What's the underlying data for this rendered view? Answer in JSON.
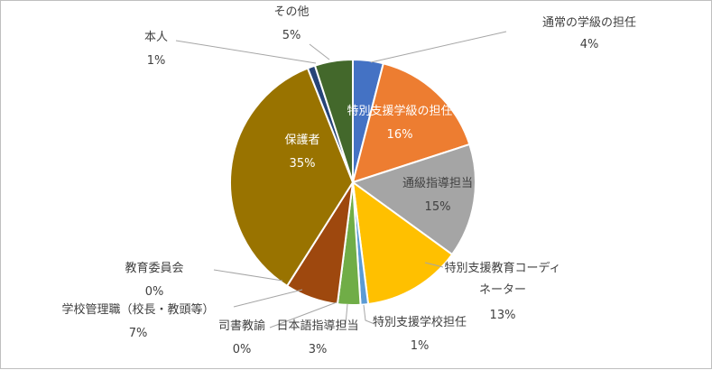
{
  "chart_data": {
    "type": "pie",
    "title": "",
    "series": [
      {
        "label": "通常の学級の担任",
        "value": 4,
        "value_label": "4%",
        "color": "#4472c4"
      },
      {
        "label": "特別支援学級の担任",
        "value": 16,
        "value_label": "16%",
        "color": "#ed7d31"
      },
      {
        "label": "通級指導担当",
        "value": 15,
        "value_label": "15%",
        "color": "#a5a5a5"
      },
      {
        "label": "特別支援教育コーディネーター",
        "label_lines": [
          "特別支援教育コーディ",
          "ネーター"
        ],
        "value": 13,
        "value_label": "13%",
        "color": "#ffc000"
      },
      {
        "label": "特別支援学校担任",
        "value": 1,
        "value_label": "1%",
        "color": "#5b9bd5"
      },
      {
        "label": "日本語指導担当",
        "value": 3,
        "value_label": "3%",
        "color": "#70ad47"
      },
      {
        "label": "司書教諭",
        "value": 0,
        "value_label": "0%",
        "color": "#264478"
      },
      {
        "label": "学校管理職（校長・教頭等）",
        "value": 7,
        "value_label": "7%",
        "color": "#9e480e"
      },
      {
        "label": "教育委員会",
        "value": 0,
        "value_label": "0%",
        "color": "#636363"
      },
      {
        "label": "保護者",
        "value": 35,
        "value_label": "35%",
        "color": "#997300"
      },
      {
        "label": "本人",
        "value": 1,
        "value_label": "1%",
        "color": "#264478"
      },
      {
        "label": "その他",
        "value": 5,
        "value_label": "5%",
        "color": "#43682b"
      }
    ]
  }
}
